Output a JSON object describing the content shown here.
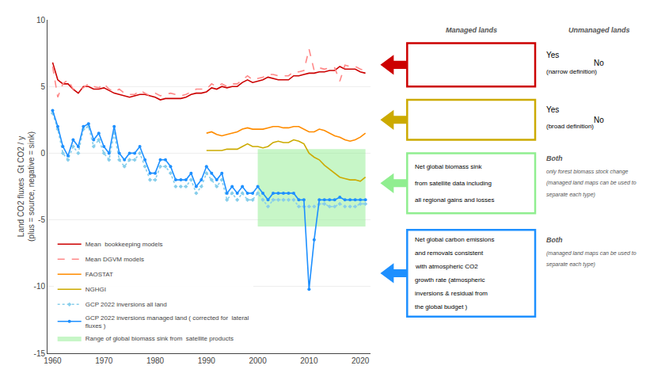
{
  "chart_data": {
    "type": "line",
    "ylabel": "Land CO2 fluxes  Gt CO2 / y\n(plus = source, negative = sink)",
    "xlim": [
      1959,
      2022
    ],
    "ylim": [
      -15,
      10
    ],
    "xticks": [
      1960,
      1970,
      1980,
      1990,
      2000,
      2010,
      2020
    ],
    "yticks": [
      -15,
      -10,
      -5,
      0,
      5,
      10
    ],
    "grid": "y",
    "legend": "lower left",
    "series": [
      {
        "name": "Mean  bookkeeping models",
        "color": "#cc0000",
        "line_style": "solid",
        "x": [
          1960,
          1961,
          1962,
          1963,
          1964,
          1965,
          1966,
          1967,
          1968,
          1969,
          1970,
          1971,
          1972,
          1973,
          1974,
          1975,
          1976,
          1977,
          1978,
          1979,
          1980,
          1981,
          1982,
          1983,
          1984,
          1985,
          1986,
          1987,
          1988,
          1989,
          1990,
          1991,
          1992,
          1993,
          1994,
          1995,
          1996,
          1997,
          1998,
          1999,
          2000,
          2001,
          2002,
          2003,
          2004,
          2005,
          2006,
          2007,
          2008,
          2009,
          2010,
          2011,
          2012,
          2013,
          2014,
          2015,
          2016,
          2017,
          2018,
          2019,
          2020,
          2021
        ],
        "values": [
          6.8,
          5.5,
          5.2,
          5.2,
          4.8,
          4.5,
          5.0,
          5.0,
          4.8,
          4.8,
          4.9,
          4.7,
          4.5,
          4.4,
          4.3,
          4.2,
          4.3,
          4.4,
          4.4,
          4.3,
          4.2,
          4.0,
          4.1,
          4.1,
          4.1,
          4.1,
          4.2,
          4.4,
          4.5,
          4.5,
          4.6,
          4.9,
          4.8,
          5.0,
          4.9,
          5.0,
          5.0,
          5.3,
          5.5,
          5.3,
          5.4,
          5.5,
          5.7,
          5.6,
          5.5,
          5.5,
          5.5,
          5.8,
          5.8,
          5.9,
          6.0,
          6.0,
          6.1,
          6.1,
          6.2,
          6.2,
          6.5,
          6.3,
          6.3,
          6.3,
          6.1,
          6.0
        ]
      },
      {
        "name": "Mean DGVM models",
        "color": "#ff8888",
        "line_style": "dashed",
        "x": [
          1960,
          1961,
          1962,
          1963,
          1964,
          1965,
          1966,
          1967,
          1968,
          1969,
          1970,
          1971,
          1972,
          1973,
          1974,
          1975,
          1976,
          1977,
          1978,
          1979,
          1980,
          1981,
          1982,
          1983,
          1984,
          1985,
          1986,
          1987,
          1988,
          1989,
          1990,
          1991,
          1992,
          1993,
          1994,
          1995,
          1996,
          1997,
          1998,
          1999,
          2000,
          2001,
          2002,
          2003,
          2004,
          2005,
          2006,
          2007,
          2008,
          2009,
          2010,
          2011,
          2012,
          2013,
          2014,
          2015,
          2016,
          2017,
          2018,
          2019,
          2020,
          2021
        ],
        "values": [
          6.5,
          4.2,
          5.2,
          5.5,
          4.8,
          4.8,
          4.9,
          5.2,
          5.0,
          4.9,
          5.2,
          4.8,
          4.6,
          4.8,
          4.5,
          4.4,
          4.4,
          4.7,
          4.5,
          4.3,
          4.5,
          4.3,
          4.4,
          4.5,
          4.4,
          4.3,
          4.4,
          4.6,
          4.8,
          4.8,
          4.8,
          5.2,
          5.0,
          5.2,
          5.0,
          5.2,
          5.2,
          5.5,
          5.8,
          5.5,
          5.6,
          5.7,
          5.9,
          5.9,
          5.8,
          5.8,
          5.8,
          6.1,
          6.1,
          6.2,
          7.8,
          6.2,
          6.4,
          6.3,
          6.4,
          6.4,
          5.4,
          6.6,
          6.5,
          6.5,
          6.3,
          6.2
        ]
      },
      {
        "name": "FAOSTAT",
        "color": "#ff8c00",
        "line_style": "solid",
        "x": [
          1990,
          1991,
          1992,
          1993,
          1994,
          1995,
          1996,
          1997,
          1998,
          1999,
          2000,
          2001,
          2002,
          2003,
          2004,
          2005,
          2006,
          2007,
          2008,
          2009,
          2010,
          2011,
          2012,
          2013,
          2014,
          2015,
          2016,
          2017,
          2018,
          2019,
          2020,
          2021
        ],
        "values": [
          1.5,
          1.6,
          1.4,
          1.3,
          1.4,
          1.5,
          1.6,
          1.8,
          1.9,
          1.8,
          1.8,
          1.8,
          1.9,
          2.0,
          2.0,
          1.9,
          1.9,
          2.0,
          2.0,
          1.8,
          1.6,
          1.6,
          1.8,
          1.7,
          1.5,
          1.3,
          1.2,
          1.0,
          0.9,
          1.0,
          1.2,
          1.5
        ]
      },
      {
        "name": "NGHGI",
        "color": "#ccaa00",
        "line_style": "solid",
        "x": [
          1990,
          1991,
          1992,
          1993,
          1994,
          1995,
          1996,
          1997,
          1998,
          1999,
          2000,
          2001,
          2002,
          2003,
          2004,
          2005,
          2006,
          2007,
          2008,
          2009,
          2010,
          2011,
          2012,
          2013,
          2014,
          2015,
          2016,
          2017,
          2018,
          2019,
          2020,
          2021
        ],
        "values": [
          0.2,
          0.2,
          0.2,
          0.2,
          0.3,
          0.3,
          0.3,
          0.5,
          0.7,
          0.5,
          0.5,
          0.4,
          0.5,
          0.8,
          0.9,
          0.8,
          0.8,
          1.0,
          0.9,
          0.7,
          0.0,
          -0.3,
          -0.5,
          -0.9,
          -1.2,
          -1.5,
          -1.8,
          -1.9,
          -2.0,
          -2.0,
          -2.1,
          -1.8
        ]
      },
      {
        "name": "GCP 2022 inversions all land",
        "color": "#87ceeb",
        "line_style": "dotted",
        "marker": "diamond",
        "x": [
          1960,
          1961,
          1962,
          1963,
          1964,
          1965,
          1966,
          1967,
          1968,
          1969,
          1970,
          1971,
          1972,
          1973,
          1974,
          1975,
          1976,
          1977,
          1978,
          1979,
          1980,
          1981,
          1982,
          1983,
          1984,
          1985,
          1986,
          1987,
          1988,
          1989,
          1990,
          1991,
          1992,
          1993,
          1994,
          1995,
          1996,
          1997,
          1998,
          1999,
          2000,
          2001,
          2002,
          2003,
          2004,
          2005,
          2006,
          2007,
          2008,
          2009,
          2010,
          2011,
          2012,
          2013,
          2014,
          2015,
          2016,
          2017,
          2018,
          2019,
          2020,
          2021
        ],
        "values": [
          3.0,
          1.8,
          0.0,
          -0.5,
          0.5,
          0.0,
          1.8,
          2.0,
          0.5,
          1.0,
          0.0,
          -0.5,
          1.5,
          -0.5,
          -1.0,
          -0.5,
          -0.5,
          0.0,
          -1.0,
          -2.0,
          -2.0,
          -1.0,
          -1.0,
          -1.5,
          -2.5,
          -2.5,
          -2.5,
          -2.0,
          -3.0,
          -2.5,
          -1.5,
          -2.0,
          -2.5,
          -2.0,
          -3.5,
          -3.0,
          -3.5,
          -3.0,
          -3.5,
          -3.5,
          -3.0,
          -3.5,
          -4.0,
          -3.5,
          -3.5,
          -3.5,
          -3.5,
          -3.5,
          -4.0,
          -4.0,
          -4.0,
          -4.0,
          -3.8,
          -3.8,
          -4.0,
          -4.0,
          -3.8,
          -4.0,
          -4.0,
          -4.0,
          -3.8,
          -3.8
        ]
      },
      {
        "name": "GCP 2022 inversions managed land ( corrected for  lateral\nfluxes )",
        "color": "#1e90ff",
        "line_style": "solid",
        "marker": "circle",
        "x": [
          1960,
          1961,
          1962,
          1963,
          1964,
          1965,
          1966,
          1967,
          1968,
          1969,
          1970,
          1971,
          1972,
          1973,
          1974,
          1975,
          1976,
          1977,
          1978,
          1979,
          1980,
          1981,
          1982,
          1983,
          1984,
          1985,
          1986,
          1987,
          1988,
          1989,
          1990,
          1991,
          1992,
          1993,
          1994,
          1995,
          1996,
          1997,
          1998,
          1999,
          2000,
          2001,
          2002,
          2003,
          2004,
          2005,
          2006,
          2007,
          2008,
          2009,
          2010,
          2011,
          2012,
          2013,
          2014,
          2015,
          2016,
          2017,
          2018,
          2019,
          2020,
          2021
        ],
        "values": [
          3.2,
          2.0,
          0.5,
          -0.2,
          1.0,
          0.5,
          2.0,
          2.2,
          1.0,
          1.5,
          0.5,
          0.0,
          2.0,
          0.0,
          -0.5,
          0.0,
          0.0,
          0.5,
          -0.5,
          -1.5,
          -1.5,
          -0.5,
          -0.5,
          -1.0,
          -2.0,
          -2.0,
          -2.0,
          -1.5,
          -2.5,
          -2.0,
          -1.0,
          -1.5,
          -2.0,
          -1.5,
          -3.0,
          -2.5,
          -3.0,
          -2.5,
          -3.0,
          -3.0,
          -2.5,
          -3.0,
          -3.5,
          -3.0,
          -3.0,
          -3.0,
          -3.0,
          -3.0,
          -3.5,
          -3.5,
          -10.2,
          -6.5,
          -3.5,
          -3.5,
          -3.5,
          -3.5,
          -3.3,
          -3.5,
          -3.5,
          -3.5,
          -3.5,
          -3.5
        ]
      },
      {
        "name": "Range of global biomass sink from  satellite products",
        "type": "band",
        "color": "#90ee90",
        "x": [
          2000,
          2021
        ],
        "low": [
          -5.5,
          -5.5
        ],
        "high": [
          0.3,
          0.3
        ]
      }
    ],
    "annotations": [
      "Managed lands",
      "Unmanaged lands",
      "Yes",
      "(narrow definition)",
      "No",
      "Yes",
      "(broad definition)",
      "No",
      "Both",
      "only forest biomass stock change",
      "(managed land maps can be used to",
      "separate each type)",
      "Net global biomass sink",
      "from satellite data including",
      "all regional gains and losses",
      "Both",
      "(managed land maps can be used to",
      "separate each type)",
      "Net global carbon emissions",
      "and removals consistent",
      "with atmospheric CO2",
      "growth rate (atmospheric",
      "inversions & residual from",
      "the global budget )"
    ]
  }
}
